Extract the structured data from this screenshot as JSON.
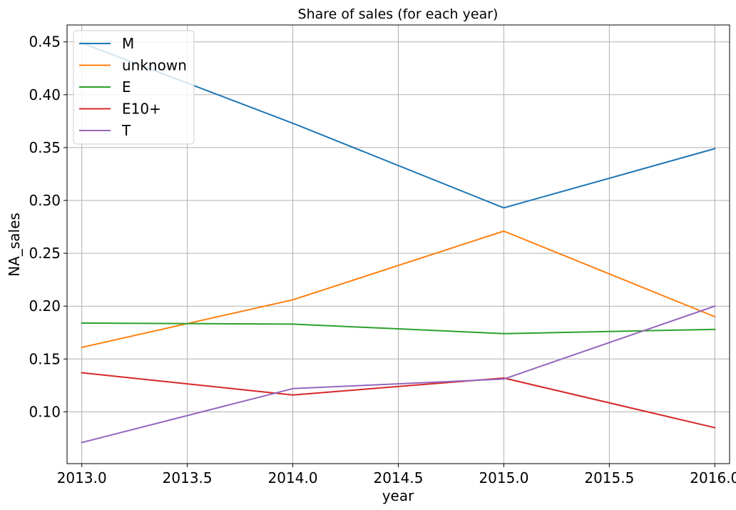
{
  "chart_data": {
    "type": "line",
    "title": "Share of sales (for each year)",
    "xlabel": "year",
    "ylabel": "NA_sales",
    "x": [
      2013,
      2014,
      2015,
      2016
    ],
    "xlim": [
      2012.93,
      2016.07
    ],
    "ylim": [
      0.051,
      0.466
    ],
    "xticks": [
      2013.0,
      2013.5,
      2014.0,
      2014.5,
      2015.0,
      2015.5,
      2016.0
    ],
    "xtick_labels": [
      "2013.0",
      "2013.5",
      "2014.0",
      "2014.5",
      "2015.0",
      "2015.5",
      "2016.0"
    ],
    "yticks": [
      0.1,
      0.15,
      0.2,
      0.25,
      0.3,
      0.35,
      0.4,
      0.45
    ],
    "ytick_labels": [
      "0.10",
      "0.15",
      "0.20",
      "0.25",
      "0.30",
      "0.35",
      "0.40",
      "0.45"
    ],
    "grid": true,
    "legend_position": "top-left",
    "series": [
      {
        "name": "M",
        "color": "#1f77b4",
        "values": [
          0.449,
          0.373,
          0.293,
          0.349
        ]
      },
      {
        "name": "unknown",
        "color": "#ff7f0e",
        "values": [
          0.161,
          0.206,
          0.271,
          0.19
        ]
      },
      {
        "name": "E",
        "color": "#2ca02c",
        "values": [
          0.184,
          0.183,
          0.174,
          0.178
        ]
      },
      {
        "name": "E10+",
        "color": "#d62728",
        "values": [
          0.137,
          0.116,
          0.132,
          0.085
        ]
      },
      {
        "name": "T",
        "color": "#9467bd",
        "values": [
          0.071,
          0.122,
          0.131,
          0.2
        ]
      }
    ]
  }
}
